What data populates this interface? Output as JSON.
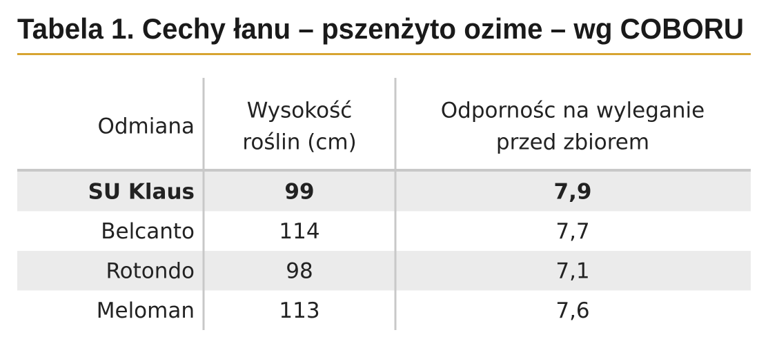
{
  "title": "Tabela 1. Cechy łanu – pszenżyto ozime – wg COBORU",
  "table": {
    "header": [
      [
        "Odmiana"
      ],
      [
        "Wysokość",
        "roślin (cm)"
      ],
      [
        "Odpornośc na wyleganie",
        "przed zbiorem"
      ]
    ],
    "rows": [
      [
        "SU Klaus",
        "99",
        "7,9"
      ],
      [
        "Belcanto",
        "114",
        "7,7"
      ],
      [
        "Rotondo",
        "98",
        "7,1"
      ],
      [
        "Meloman",
        "113",
        "7,6"
      ]
    ]
  }
}
